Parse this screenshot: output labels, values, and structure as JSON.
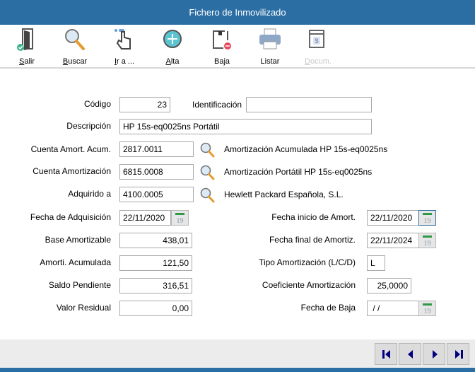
{
  "window": {
    "title": "Fichero de Inmovilizado"
  },
  "toolbar": [
    {
      "key": "S",
      "rest": "alir",
      "icon": "exit-door-icon"
    },
    {
      "key": "B",
      "rest": "uscar",
      "icon": "search-icon"
    },
    {
      "key": "I",
      "rest": "r a ...",
      "icon": "pointer-hand-icon"
    },
    {
      "key": "A",
      "rest": "lta",
      "icon": "add-circle-icon"
    },
    {
      "key": "",
      "rest": "Baja",
      "icon": "delete-icon"
    },
    {
      "key": "",
      "rest": "Listar",
      "icon": "printer-icon"
    },
    {
      "key": "D",
      "rest": "ocum.",
      "icon": "document-icon",
      "disabled": true
    }
  ],
  "form": {
    "codigo": {
      "label": "Código",
      "value": "23"
    },
    "identificacion": {
      "label": "Identificación",
      "value": ""
    },
    "descripcion": {
      "label": "Descripción",
      "value": "HP 15s-eq0025ns Portátil"
    },
    "cuenta_amort_acum": {
      "label": "Cuenta Amort. Acum.",
      "value": "2817.0011",
      "desc": "Amortización Acumulada HP 15s-eq0025ns"
    },
    "cuenta_amortizacion": {
      "label": "Cuenta Amortización",
      "value": "6815.0008",
      "desc": "Amortización Portátil HP 15s-eq0025ns"
    },
    "adquirido_a": {
      "label": "Adquirido a",
      "value": "4100.0005",
      "desc": "Hewlett Packard Española, S.L."
    },
    "fecha_adquisicion": {
      "label": "Fecha de Adquisición",
      "value": "22/11/2020"
    },
    "base_amortizable": {
      "label": "Base Amortizable",
      "value": "438,01"
    },
    "amort_acumulada": {
      "label": "Amorti. Acumulada",
      "value": "121,50"
    },
    "saldo_pendiente": {
      "label": "Saldo Pendiente",
      "value": "316,51"
    },
    "valor_residual": {
      "label": "Valor Residual",
      "value": "0,00"
    },
    "fecha_inicio": {
      "label": "Fecha inicio de Amort.",
      "value": "22/11/2020"
    },
    "fecha_final": {
      "label": "Fecha final de Amortiz.",
      "value": "22/11/2024"
    },
    "tipo": {
      "label": "Tipo Amortización (L/C/D)",
      "value": "L"
    },
    "coeficiente": {
      "label": "Coeficiente Amortización",
      "value": "25,0000"
    },
    "fecha_baja": {
      "label": "Fecha de Baja",
      "value": " / /"
    }
  },
  "calendar_day": "19",
  "colors": {
    "accent": "#2b6ea3",
    "nav_arrow": "#00007f"
  }
}
